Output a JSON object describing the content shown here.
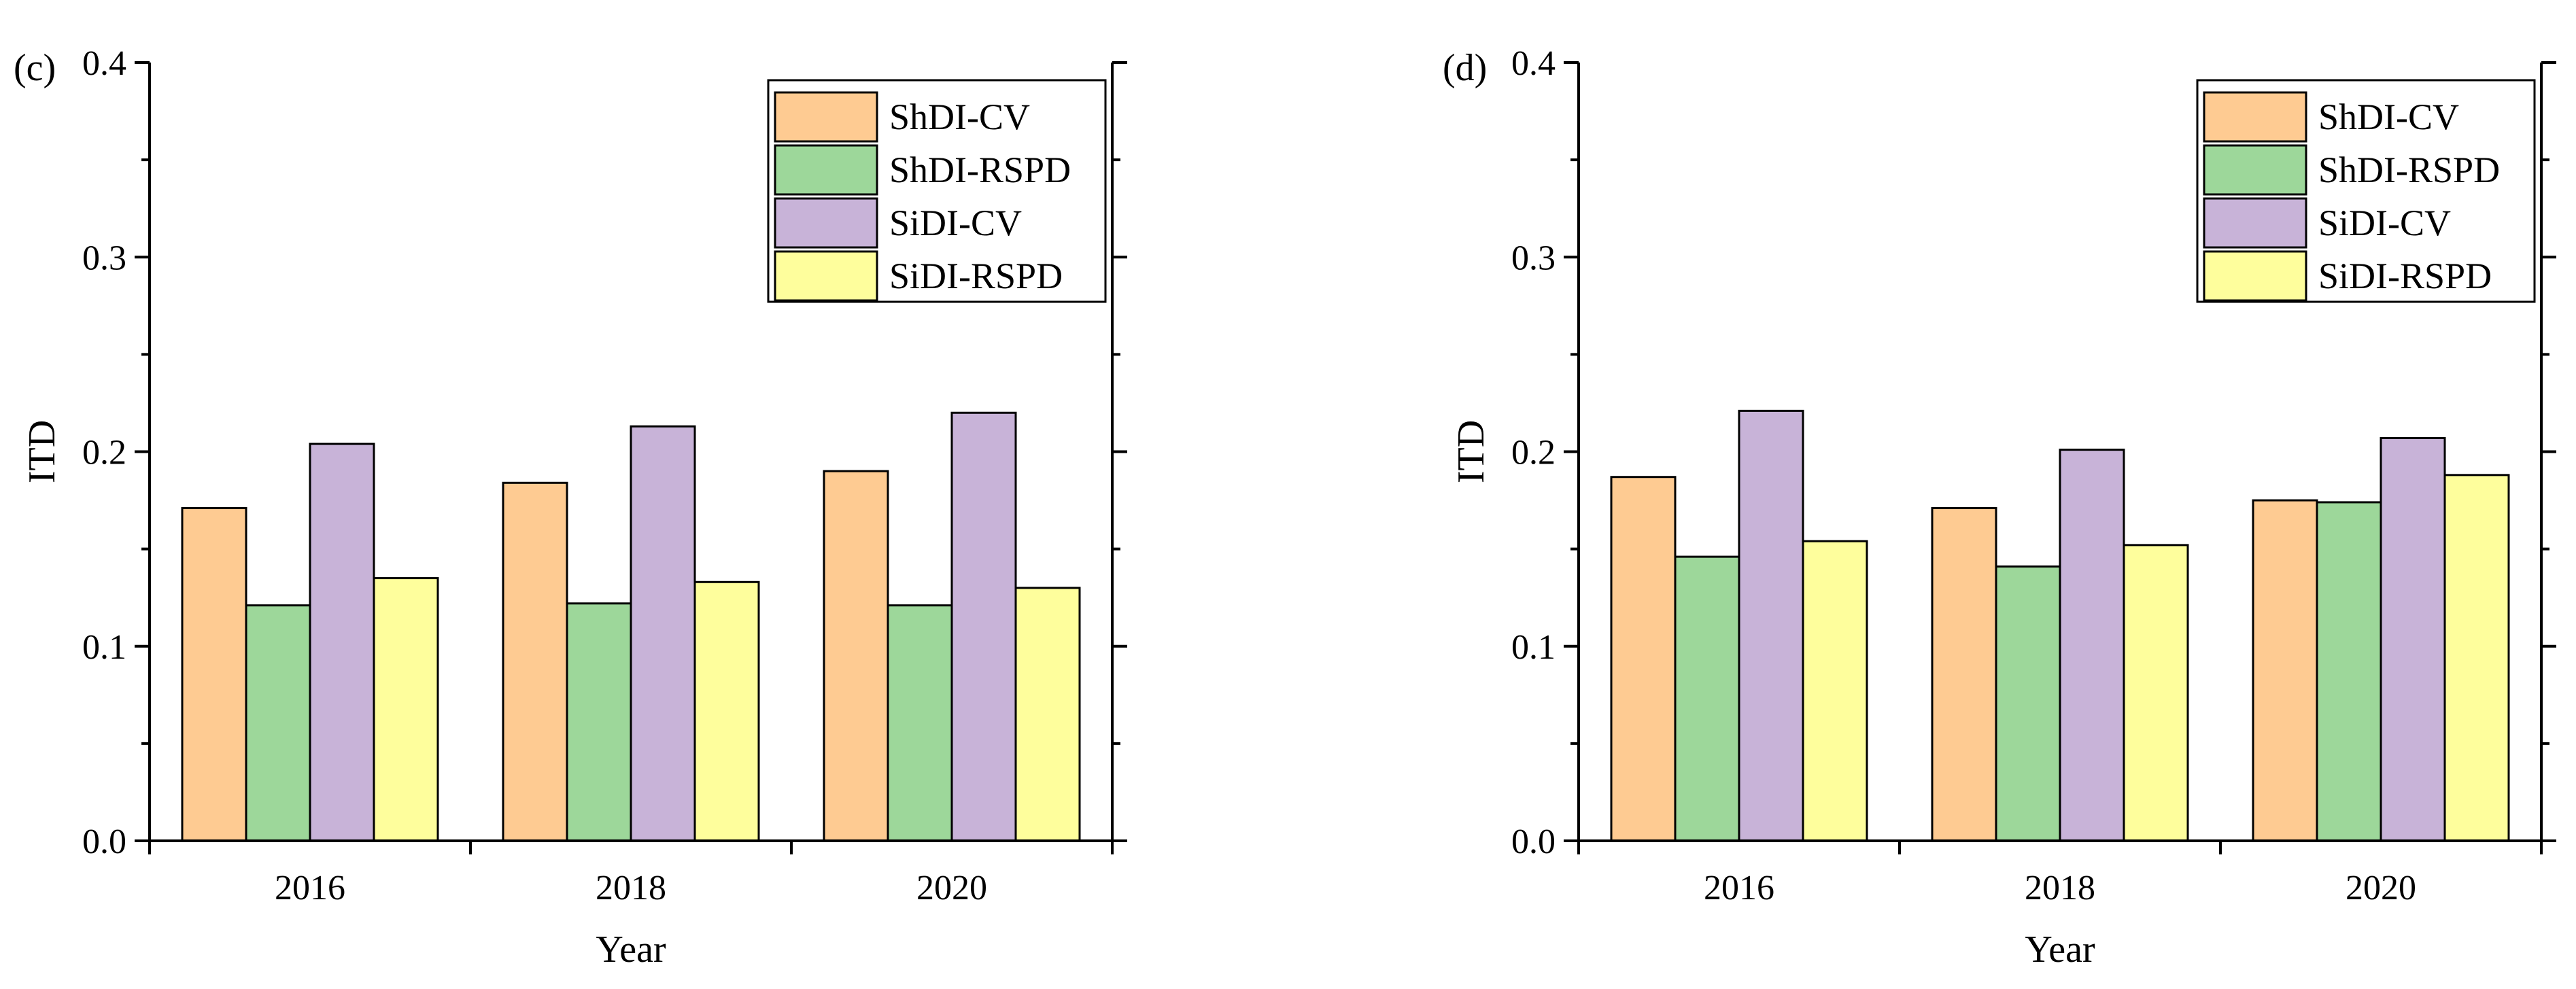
{
  "colors": {
    "ShDI-CV": "#FECB92",
    "ShDI-RSPD": "#9DD79A",
    "SiDI-CV": "#C8B3D8",
    "SiDI-RSPD": "#FEFE9C",
    "axis": "#000000"
  },
  "chart_data": [
    {
      "type": "bar",
      "panel_label": "(c)",
      "xlabel": "Year",
      "ylabel": "ITD",
      "ylim": [
        0,
        0.4
      ],
      "yticks": [
        "0.0",
        "0.1",
        "0.2",
        "0.3",
        "0.4"
      ],
      "categories": [
        "2016",
        "2018",
        "2020"
      ],
      "legend_position": "top-right",
      "series": [
        {
          "name": "ShDI-CV",
          "values": [
            0.171,
            0.184,
            0.19
          ]
        },
        {
          "name": "ShDI-RSPD",
          "values": [
            0.121,
            0.122,
            0.121
          ]
        },
        {
          "name": "SiDI-CV",
          "values": [
            0.204,
            0.213,
            0.22
          ]
        },
        {
          "name": "SiDI-RSPD",
          "values": [
            0.135,
            0.133,
            0.13
          ]
        }
      ]
    },
    {
      "type": "bar",
      "panel_label": "(d)",
      "xlabel": "Year",
      "ylabel": "ITD",
      "ylim": [
        0,
        0.4
      ],
      "yticks": [
        "0.0",
        "0.1",
        "0.2",
        "0.3",
        "0.4"
      ],
      "categories": [
        "2016",
        "2018",
        "2020"
      ],
      "legend_position": "top-right",
      "series": [
        {
          "name": "ShDI-CV",
          "values": [
            0.187,
            0.171,
            0.175
          ]
        },
        {
          "name": "ShDI-RSPD",
          "values": [
            0.146,
            0.141,
            0.174
          ]
        },
        {
          "name": "SiDI-CV",
          "values": [
            0.221,
            0.201,
            0.207
          ]
        },
        {
          "name": "SiDI-RSPD",
          "values": [
            0.154,
            0.152,
            0.188
          ]
        }
      ]
    }
  ]
}
